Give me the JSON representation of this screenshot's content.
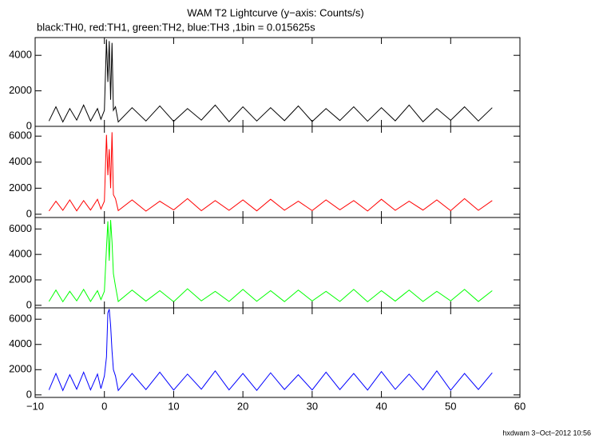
{
  "chart_data": {
    "type": "stacked-line",
    "title": "WAM T2 Lightcurve (y−axis: Counts/s)",
    "subtitle": "black:TH0, red:TH1, green:TH2, blue:TH3 ,1bin = 0.015625s",
    "footer": "hxdwam  3−Oct−2012 10:56",
    "xlim": [
      -10,
      60
    ],
    "xticks": [
      {
        "value": -10,
        "label": "−10"
      },
      0,
      10,
      20,
      30,
      40,
      50,
      60
    ],
    "x": [
      -8,
      -7,
      -6,
      -5,
      -4,
      -3,
      -2,
      -1,
      -0.5,
      0,
      0.3,
      0.5,
      0.7,
      0.9,
      1.1,
      1.3,
      1.6,
      2,
      4,
      6,
      8,
      10,
      12,
      14,
      16,
      18,
      20,
      22,
      24,
      26,
      28,
      30,
      32,
      34,
      36,
      38,
      40,
      42,
      44,
      46,
      48,
      50,
      52,
      54,
      56
    ],
    "panels": [
      {
        "color": "#000000",
        "ylim": [
          0,
          5000
        ],
        "yticks": [
          0,
          2000,
          4000
        ],
        "values": [
          300,
          1100,
          250,
          1000,
          350,
          1200,
          300,
          1000,
          400,
          900,
          4900,
          2500,
          4800,
          1500,
          4700,
          900,
          1100,
          250,
          1050,
          300,
          1150,
          280,
          1000,
          350,
          1200,
          260,
          1100,
          300,
          1050,
          320,
          1150,
          270,
          1000,
          330,
          1100,
          290,
          1050,
          310,
          1200,
          260,
          1000,
          340,
          1100,
          300,
          1050
        ]
      },
      {
        "color": "#ff0000",
        "ylim": [
          -250,
          6750
        ],
        "yticks": [
          0,
          2000,
          4000,
          6000
        ],
        "values": [
          250,
          1000,
          300,
          1100,
          260,
          1050,
          320,
          1150,
          400,
          1000,
          6100,
          3000,
          5000,
          2000,
          6300,
          1500,
          1200,
          280,
          1100,
          240,
          1000,
          330,
          1200,
          270,
          1050,
          300,
          1100,
          260,
          1150,
          310,
          1000,
          280,
          1100,
          340,
          1050,
          250,
          1150,
          300,
          1000,
          320,
          1100,
          270,
          1200,
          300,
          1050
        ]
      },
      {
        "color": "#00ff00",
        "ylim": [
          -200,
          6900
        ],
        "yticks": [
          0,
          2000,
          4000,
          6000
        ],
        "values": [
          300,
          1200,
          280,
          1100,
          350,
          1250,
          300,
          1150,
          450,
          1100,
          4500,
          6600,
          3500,
          6700,
          5000,
          2500,
          1500,
          300,
          1200,
          330,
          1150,
          280,
          1300,
          350,
          1100,
          300,
          1250,
          320,
          1150,
          290,
          1200,
          340,
          1100,
          300,
          1250,
          280,
          1150,
          330,
          1200,
          300,
          1100,
          350,
          1250,
          300,
          1150
        ]
      },
      {
        "color": "#0000ff",
        "ylim": [
          -200,
          6900
        ],
        "yticks": [
          0,
          2000,
          4000,
          6000
        ],
        "values": [
          400,
          1700,
          350,
          1600,
          450,
          1800,
          400,
          1650,
          500,
          1500,
          3000,
          6500,
          6800,
          5500,
          3500,
          2000,
          1500,
          350,
          1700,
          420,
          1800,
          380,
          1650,
          450,
          1900,
          400,
          1700,
          360,
          1750,
          430,
          1600,
          390,
          1800,
          420,
          1700,
          380,
          1850,
          440,
          1650,
          400,
          1900,
          370,
          1700,
          430,
          1750
        ]
      }
    ]
  }
}
